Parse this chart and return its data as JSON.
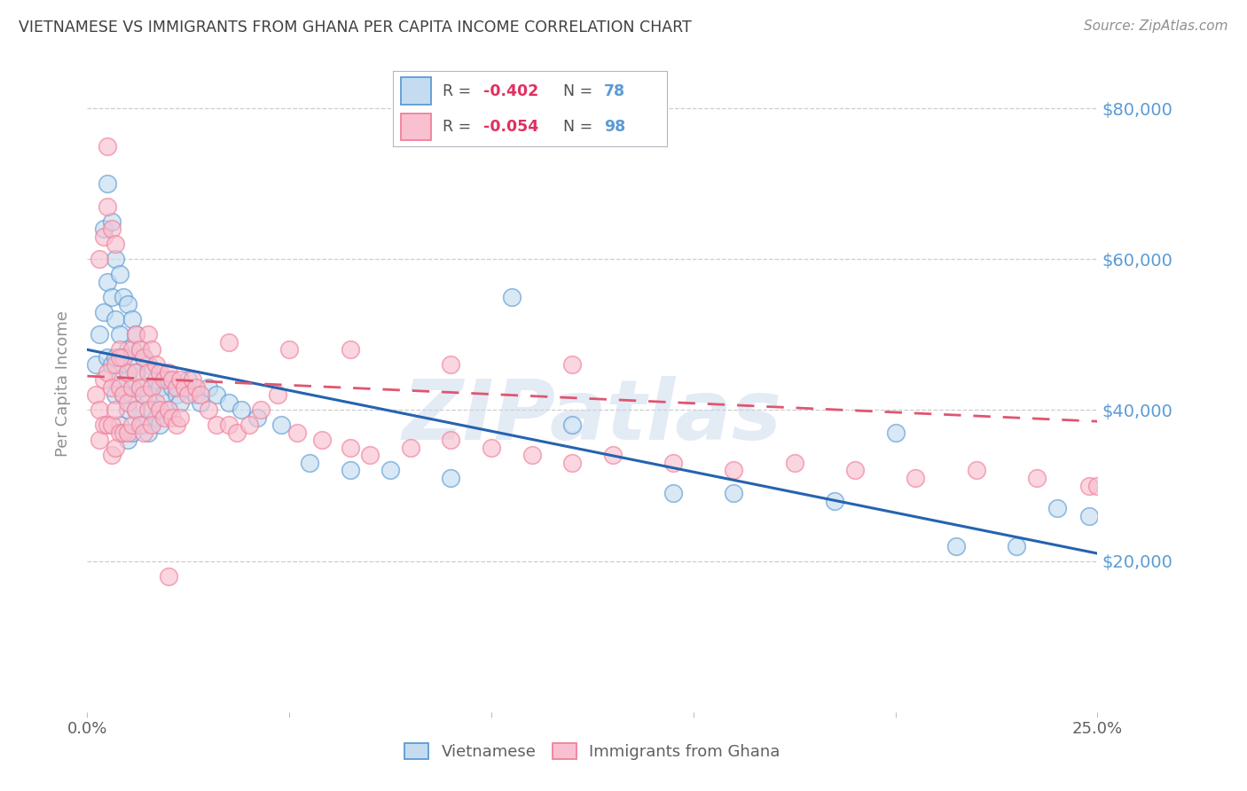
{
  "title": "VIETNAMESE VS IMMIGRANTS FROM GHANA PER CAPITA INCOME CORRELATION CHART",
  "source": "Source: ZipAtlas.com",
  "ylabel": "Per Capita Income",
  "watermark": "ZIPatlas",
  "blue_color": "#5b9bd5",
  "pink_color": "#f08098",
  "blue_face": "#c5dcf0",
  "pink_face": "#f8c0d0",
  "title_color": "#404040",
  "axis_label_color": "#808080",
  "grid_color": "#c8c8c8",
  "bg_color": "#ffffff",
  "ylim": [
    0,
    87000
  ],
  "xlim": [
    0.0,
    0.25
  ],
  "ytick_values": [
    20000,
    40000,
    60000,
    80000
  ],
  "ytick_labels": [
    "$20,000",
    "$40,000",
    "$60,000",
    "$80,000"
  ],
  "viet_line_x": [
    0.0,
    0.25
  ],
  "viet_line_y": [
    48000,
    21000
  ],
  "ghana_line_x": [
    0.0,
    0.25
  ],
  "ghana_line_y": [
    44500,
    38500
  ],
  "viet_scatter_x": [
    0.002,
    0.003,
    0.004,
    0.004,
    0.005,
    0.005,
    0.005,
    0.006,
    0.006,
    0.006,
    0.007,
    0.007,
    0.007,
    0.007,
    0.008,
    0.008,
    0.008,
    0.008,
    0.009,
    0.009,
    0.009,
    0.01,
    0.01,
    0.01,
    0.01,
    0.01,
    0.011,
    0.011,
    0.011,
    0.011,
    0.012,
    0.012,
    0.012,
    0.013,
    0.013,
    0.013,
    0.014,
    0.014,
    0.014,
    0.015,
    0.015,
    0.015,
    0.016,
    0.016,
    0.017,
    0.017,
    0.018,
    0.018,
    0.019,
    0.02,
    0.02,
    0.021,
    0.022,
    0.023,
    0.024,
    0.025,
    0.027,
    0.028,
    0.03,
    0.032,
    0.035,
    0.038,
    0.042,
    0.048,
    0.055,
    0.065,
    0.075,
    0.09,
    0.105,
    0.12,
    0.145,
    0.16,
    0.185,
    0.2,
    0.215,
    0.23,
    0.24,
    0.248
  ],
  "viet_scatter_y": [
    46000,
    50000,
    64000,
    53000,
    70000,
    57000,
    47000,
    65000,
    55000,
    46000,
    60000,
    52000,
    47000,
    42000,
    58000,
    50000,
    44000,
    38000,
    55000,
    47000,
    42000,
    54000,
    48000,
    44000,
    40000,
    36000,
    52000,
    46000,
    42000,
    37000,
    50000,
    45000,
    40000,
    48000,
    43000,
    38000,
    47000,
    43000,
    38000,
    46000,
    42000,
    37000,
    45000,
    40000,
    44000,
    39000,
    43000,
    38000,
    42000,
    44000,
    40000,
    43000,
    42000,
    41000,
    43000,
    44000,
    42000,
    41000,
    43000,
    42000,
    41000,
    40000,
    39000,
    38000,
    33000,
    32000,
    32000,
    31000,
    55000,
    38000,
    29000,
    29000,
    28000,
    37000,
    22000,
    22000,
    27000,
    26000
  ],
  "ghana_scatter_x": [
    0.002,
    0.003,
    0.003,
    0.004,
    0.004,
    0.005,
    0.005,
    0.005,
    0.006,
    0.006,
    0.006,
    0.007,
    0.007,
    0.007,
    0.008,
    0.008,
    0.008,
    0.009,
    0.009,
    0.009,
    0.01,
    0.01,
    0.01,
    0.011,
    0.011,
    0.011,
    0.012,
    0.012,
    0.012,
    0.013,
    0.013,
    0.013,
    0.014,
    0.014,
    0.014,
    0.015,
    0.015,
    0.015,
    0.016,
    0.016,
    0.016,
    0.017,
    0.017,
    0.018,
    0.018,
    0.019,
    0.019,
    0.02,
    0.02,
    0.021,
    0.021,
    0.022,
    0.022,
    0.023,
    0.023,
    0.024,
    0.025,
    0.026,
    0.027,
    0.028,
    0.03,
    0.032,
    0.035,
    0.037,
    0.04,
    0.043,
    0.047,
    0.052,
    0.058,
    0.065,
    0.07,
    0.08,
    0.09,
    0.1,
    0.11,
    0.12,
    0.13,
    0.145,
    0.16,
    0.175,
    0.19,
    0.205,
    0.22,
    0.235,
    0.248,
    0.25,
    0.003,
    0.004,
    0.005,
    0.006,
    0.007,
    0.008,
    0.02,
    0.035,
    0.05,
    0.065,
    0.09,
    0.12
  ],
  "ghana_scatter_y": [
    42000,
    40000,
    36000,
    44000,
    38000,
    75000,
    45000,
    38000,
    43000,
    38000,
    34000,
    46000,
    40000,
    35000,
    48000,
    43000,
    37000,
    47000,
    42000,
    37000,
    45000,
    41000,
    37000,
    48000,
    43000,
    38000,
    50000,
    45000,
    40000,
    48000,
    43000,
    38000,
    47000,
    42000,
    37000,
    50000,
    45000,
    40000,
    48000,
    43000,
    38000,
    46000,
    41000,
    45000,
    40000,
    44000,
    39000,
    45000,
    40000,
    44000,
    39000,
    43000,
    38000,
    44000,
    39000,
    43000,
    42000,
    44000,
    43000,
    42000,
    40000,
    38000,
    38000,
    37000,
    38000,
    40000,
    42000,
    37000,
    36000,
    35000,
    34000,
    35000,
    36000,
    35000,
    34000,
    33000,
    34000,
    33000,
    32000,
    33000,
    32000,
    31000,
    32000,
    31000,
    30000,
    30000,
    60000,
    63000,
    67000,
    64000,
    62000,
    47000,
    18000,
    49000,
    48000,
    48000,
    46000,
    46000
  ]
}
